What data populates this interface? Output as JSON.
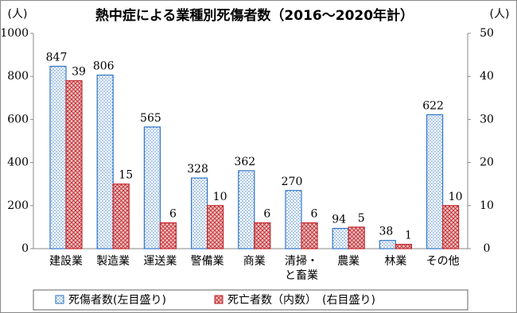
{
  "chart_data": {
    "type": "bar",
    "title": "熱中症による業種別死傷者数（2016～2020年計）",
    "y_unit": "(人)",
    "y2_unit": "(人)",
    "categories": [
      "建設業",
      "製造業",
      "運送業",
      "警備業",
      "商業",
      "清掃・\nと畜業",
      "農業",
      "林業",
      "その他"
    ],
    "series": [
      {
        "name": "死傷者数(左目盛り)",
        "color": "#2e75c8",
        "values": [
          847,
          806,
          565,
          328,
          362,
          270,
          94,
          38,
          622
        ]
      },
      {
        "name": "死亡者数（内数）　(右目盛り)",
        "color": "#c0282d",
        "axis": "y2",
        "values": [
          39,
          15,
          6,
          10,
          6,
          6,
          5,
          1,
          10
        ]
      }
    ],
    "ylim": [
      0,
      1000
    ],
    "yticks": [
      0,
      200,
      400,
      600,
      800,
      1000
    ],
    "y2lim": [
      0,
      50
    ],
    "y2ticks": [
      0,
      10,
      20,
      30,
      40,
      50
    ],
    "legend": "bottom"
  }
}
